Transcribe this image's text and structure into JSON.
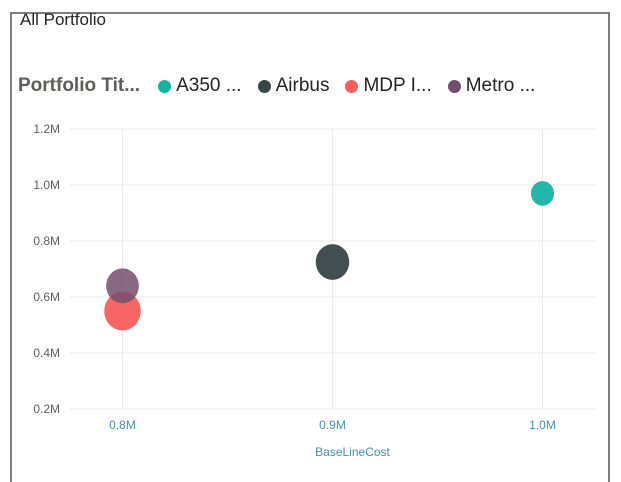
{
  "visual": {
    "title": "All Portfolio"
  },
  "chart_data": {
    "type": "scatter",
    "legend_title": "Portfolio Tit...",
    "legend_position": "top-left",
    "xlabel": "BaseLineCost",
    "ylabel": "",
    "xlim": [
      0.775,
      1.025
    ],
    "ylim": [
      0.2,
      1.2
    ],
    "x_ticks": [
      0.8,
      0.9,
      1.0
    ],
    "x_tick_labels": [
      "0.8M",
      "0.9M",
      "1.0M"
    ],
    "y_ticks": [
      0.2,
      0.4,
      0.6,
      0.8,
      1.0,
      1.2
    ],
    "y_tick_labels": [
      "0.2M",
      "0.4M",
      "0.6M",
      "0.8M",
      "1.0M",
      "1.2M"
    ],
    "grid": true,
    "series": [
      {
        "name": "A350 ...",
        "color": "#16b3a5",
        "points": [
          {
            "x": 1.0,
            "y": 0.97,
            "size": 1.0
          }
        ]
      },
      {
        "name": "Airbus",
        "color": "#374649",
        "points": [
          {
            "x": 0.9,
            "y": 0.725,
            "size": 2.1
          }
        ]
      },
      {
        "name": "MDP I...",
        "color": "#f85d5d",
        "points": [
          {
            "x": 0.8,
            "y": 0.55,
            "size": 2.5
          }
        ]
      },
      {
        "name": "Metro ...",
        "color": "#744d6d",
        "points": [
          {
            "x": 0.8,
            "y": 0.64,
            "size": 2.0
          }
        ]
      }
    ]
  }
}
